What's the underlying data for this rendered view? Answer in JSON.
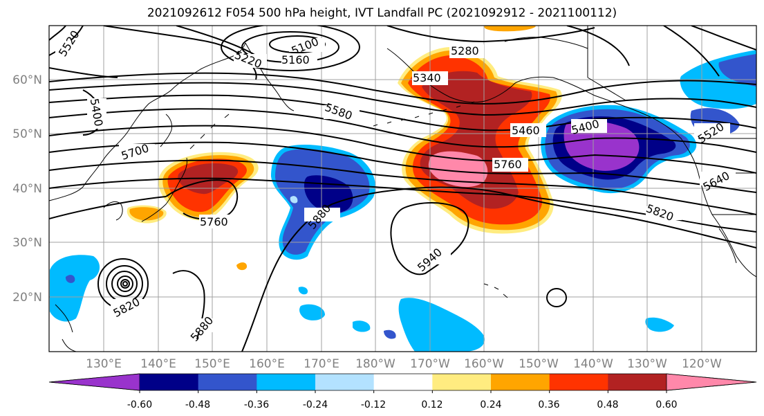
{
  "title": "2021092612 F054 500 hPa height, IVT Landfall PC (2021092912 - 2021100112)",
  "map": {
    "lat_labels": [
      "60°N",
      "50°N",
      "40°N",
      "30°N",
      "20°N"
    ],
    "lon_labels": [
      "130°E",
      "140°E",
      "150°E",
      "160°E",
      "170°E",
      "180°W",
      "170°W",
      "160°W",
      "150°W",
      "140°W",
      "130°W",
      "120°W"
    ],
    "contour_labels": [
      "5520",
      "5220",
      "5100",
      "5160",
      "5280",
      "5340",
      "5460",
      "5580",
      "5700",
      "5400",
      "5760",
      "5760",
      "5880",
      "5940",
      "5820",
      "5820",
      "5880",
      "5400",
      "5520",
      "5640"
    ],
    "contour_line_color": "#000000"
  },
  "colorbar": {
    "colors": [
      "#9933cc",
      "#000088",
      "#3355cc",
      "#00bbff",
      "#b3e2ff",
      "#ffffff",
      "#ffec80",
      "#ffa500",
      "#ff3300",
      "#b22222",
      "#ff88aa"
    ],
    "tick_labels": [
      "-0.60",
      "-0.48",
      "-0.36",
      "-0.24",
      "-0.12",
      "0.12",
      "0.24",
      "0.36",
      "0.48",
      "0.60"
    ],
    "extend": "both"
  }
}
